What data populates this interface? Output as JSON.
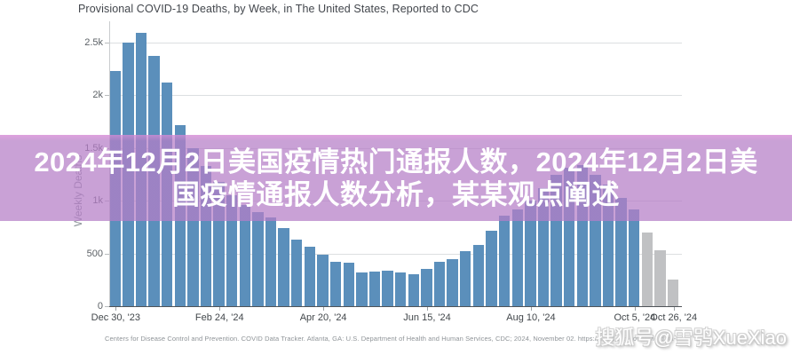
{
  "overlay": {
    "lines": [
      "2024年12月2日美国疫情热门通报人数，2024年12月2日美",
      "国疫情通报人数分析，某某观点阐述"
    ],
    "bg_color": "#b57ec7",
    "text_color": "#ffffff"
  },
  "watermark": {
    "text": "搜狐号@雪鸮XueXiao"
  },
  "footer": {
    "text": "Centers for Disease Control and Prevention. COVID Data Tracker. Atlanta, GA: U.S. Department of Health and Human Services, CDC; 2024, November 02. https://covid.cdc.gov/covid-data-trac"
  },
  "chart_data": {
    "type": "bar",
    "title": "Provisional COVID-19 Deaths, by Week, in The United States, Reported to CDC",
    "xlabel": "",
    "ylabel": "Weekly Deaths",
    "ylim": [
      0,
      2700
    ],
    "grid": true,
    "y_ticks": [
      {
        "v": 0,
        "label": "0"
      },
      {
        "v": 500,
        "label": "500"
      },
      {
        "v": 1000,
        "label": "1k"
      },
      {
        "v": 1500,
        "label": "1.5k"
      },
      {
        "v": 2000,
        "label": "2k"
      },
      {
        "v": 2500,
        "label": "2.5k"
      }
    ],
    "x_ticks": [
      {
        "bar": 0,
        "label": "Dec 30, '23"
      },
      {
        "bar": 8,
        "label": "Feb 24, '24"
      },
      {
        "bar": 16,
        "label": "Apr 20, '24"
      },
      {
        "bar": 24,
        "label": "Jun 15, '24"
      },
      {
        "bar": 32,
        "label": "Aug 10, '24"
      },
      {
        "bar": 40,
        "label": "Oct 5, '24"
      },
      {
        "bar": 43,
        "label": "Oct 26, '24"
      }
    ],
    "values": [
      2230,
      2500,
      2590,
      2370,
      2120,
      1720,
      1500,
      1330,
      1180,
      1050,
      960,
      890,
      845,
      740,
      635,
      565,
      490,
      420,
      415,
      320,
      330,
      335,
      320,
      300,
      350,
      425,
      445,
      520,
      585,
      715,
      855,
      920,
      1000,
      1120,
      1250,
      1310,
      1340,
      1250,
      1150,
      1030,
      920,
      700,
      530,
      250
    ],
    "provisional_last_n": 3,
    "colors": {
      "reported": "#5b8fbb",
      "provisional": "#c0c1c3"
    },
    "legend": "none"
  }
}
